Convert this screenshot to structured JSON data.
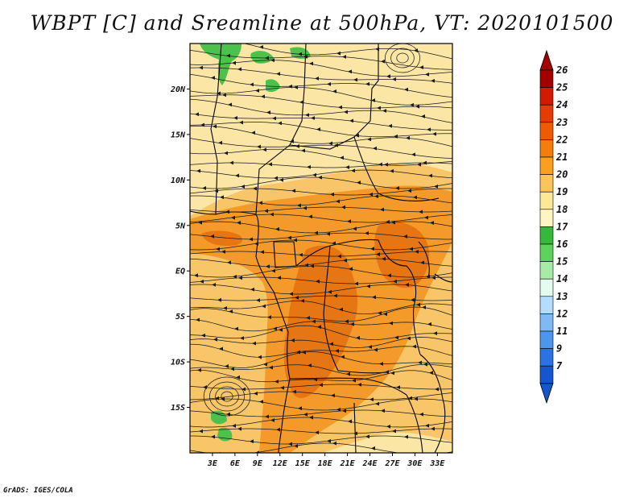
{
  "title": "WBPT [C] and Sreamline at 500hPa, VT: 2020101500",
  "footer": "GrADS: IGES/COLA",
  "map": {
    "variable": "Wet Bulb Potential Temperature",
    "units": "C",
    "level": "500hPa",
    "lon_range": [
      0,
      35
    ],
    "lat_range": [
      -20,
      25
    ],
    "lat_ticks": [
      {
        "value": 20,
        "label": "20N"
      },
      {
        "value": 15,
        "label": "15N"
      },
      {
        "value": 10,
        "label": "10N"
      },
      {
        "value": 5,
        "label": "5N"
      },
      {
        "value": 0,
        "label": "EQ"
      },
      {
        "value": -5,
        "label": "5S"
      },
      {
        "value": -10,
        "label": "10S"
      },
      {
        "value": -15,
        "label": "15S"
      }
    ],
    "lon_ticks": [
      {
        "value": 3,
        "label": "3E"
      },
      {
        "value": 6,
        "label": "6E"
      },
      {
        "value": 9,
        "label": "9E"
      },
      {
        "value": 12,
        "label": "12E"
      },
      {
        "value": 15,
        "label": "15E"
      },
      {
        "value": 18,
        "label": "18E"
      },
      {
        "value": 21,
        "label": "21E"
      },
      {
        "value": 24,
        "label": "24E"
      },
      {
        "value": 27,
        "label": "27E"
      },
      {
        "value": 30,
        "label": "30E"
      },
      {
        "value": 33,
        "label": "33E"
      }
    ]
  },
  "colorbar": {
    "levels": [
      "26",
      "25",
      "24",
      "23",
      "22",
      "21",
      "20",
      "19",
      "18",
      "17",
      "16",
      "15",
      "14",
      "13",
      "12",
      "11",
      "9",
      "7"
    ],
    "colors": [
      "#a50000",
      "#d21a00",
      "#e63c00",
      "#f05a00",
      "#f57d0a",
      "#faa01e",
      "#fcc45a",
      "#fde896",
      "#fff5c0",
      "#36b83a",
      "#5cd45c",
      "#a6eca6",
      "#e6fbf0",
      "#b4dcff",
      "#7fbaf5",
      "#4c96ec",
      "#2a73e0",
      "#1556cf"
    ]
  },
  "colors": {
    "pale_yellow": "#fbe6a6",
    "yellow_orange": "#f8c668",
    "orange": "#f39a2a",
    "dark_orange": "#e67514",
    "green": "#4cc24c",
    "streamline": "#1a1a1a"
  }
}
